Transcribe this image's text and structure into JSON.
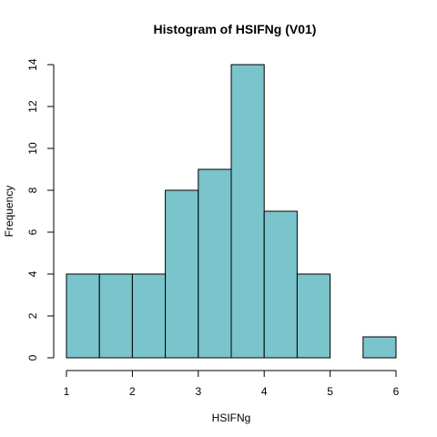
{
  "chart_data": {
    "type": "bar",
    "title": "Histogram of HSIFNg (V01)",
    "xlabel": "HSIFNg",
    "ylabel": "Frequency",
    "bins": [
      {
        "start": 1.0,
        "end": 1.5,
        "count": 4
      },
      {
        "start": 1.5,
        "end": 2.0,
        "count": 4
      },
      {
        "start": 2.0,
        "end": 2.5,
        "count": 4
      },
      {
        "start": 2.5,
        "end": 3.0,
        "count": 8
      },
      {
        "start": 3.0,
        "end": 3.5,
        "count": 9
      },
      {
        "start": 3.5,
        "end": 4.0,
        "count": 14
      },
      {
        "start": 4.0,
        "end": 4.5,
        "count": 7
      },
      {
        "start": 4.5,
        "end": 5.0,
        "count": 4
      },
      {
        "start": 5.0,
        "end": 5.5,
        "count": 0
      },
      {
        "start": 5.5,
        "end": 6.0,
        "count": 1
      }
    ],
    "xlim": [
      1,
      6
    ],
    "ylim": [
      0,
      14
    ],
    "xticks": [
      "1",
      "2",
      "3",
      "4",
      "5",
      "6"
    ],
    "yticks": [
      "0",
      "2",
      "4",
      "6",
      "8",
      "10",
      "12",
      "14"
    ],
    "bar_color": "#7ac4cc",
    "grid": false,
    "legend": "none"
  }
}
